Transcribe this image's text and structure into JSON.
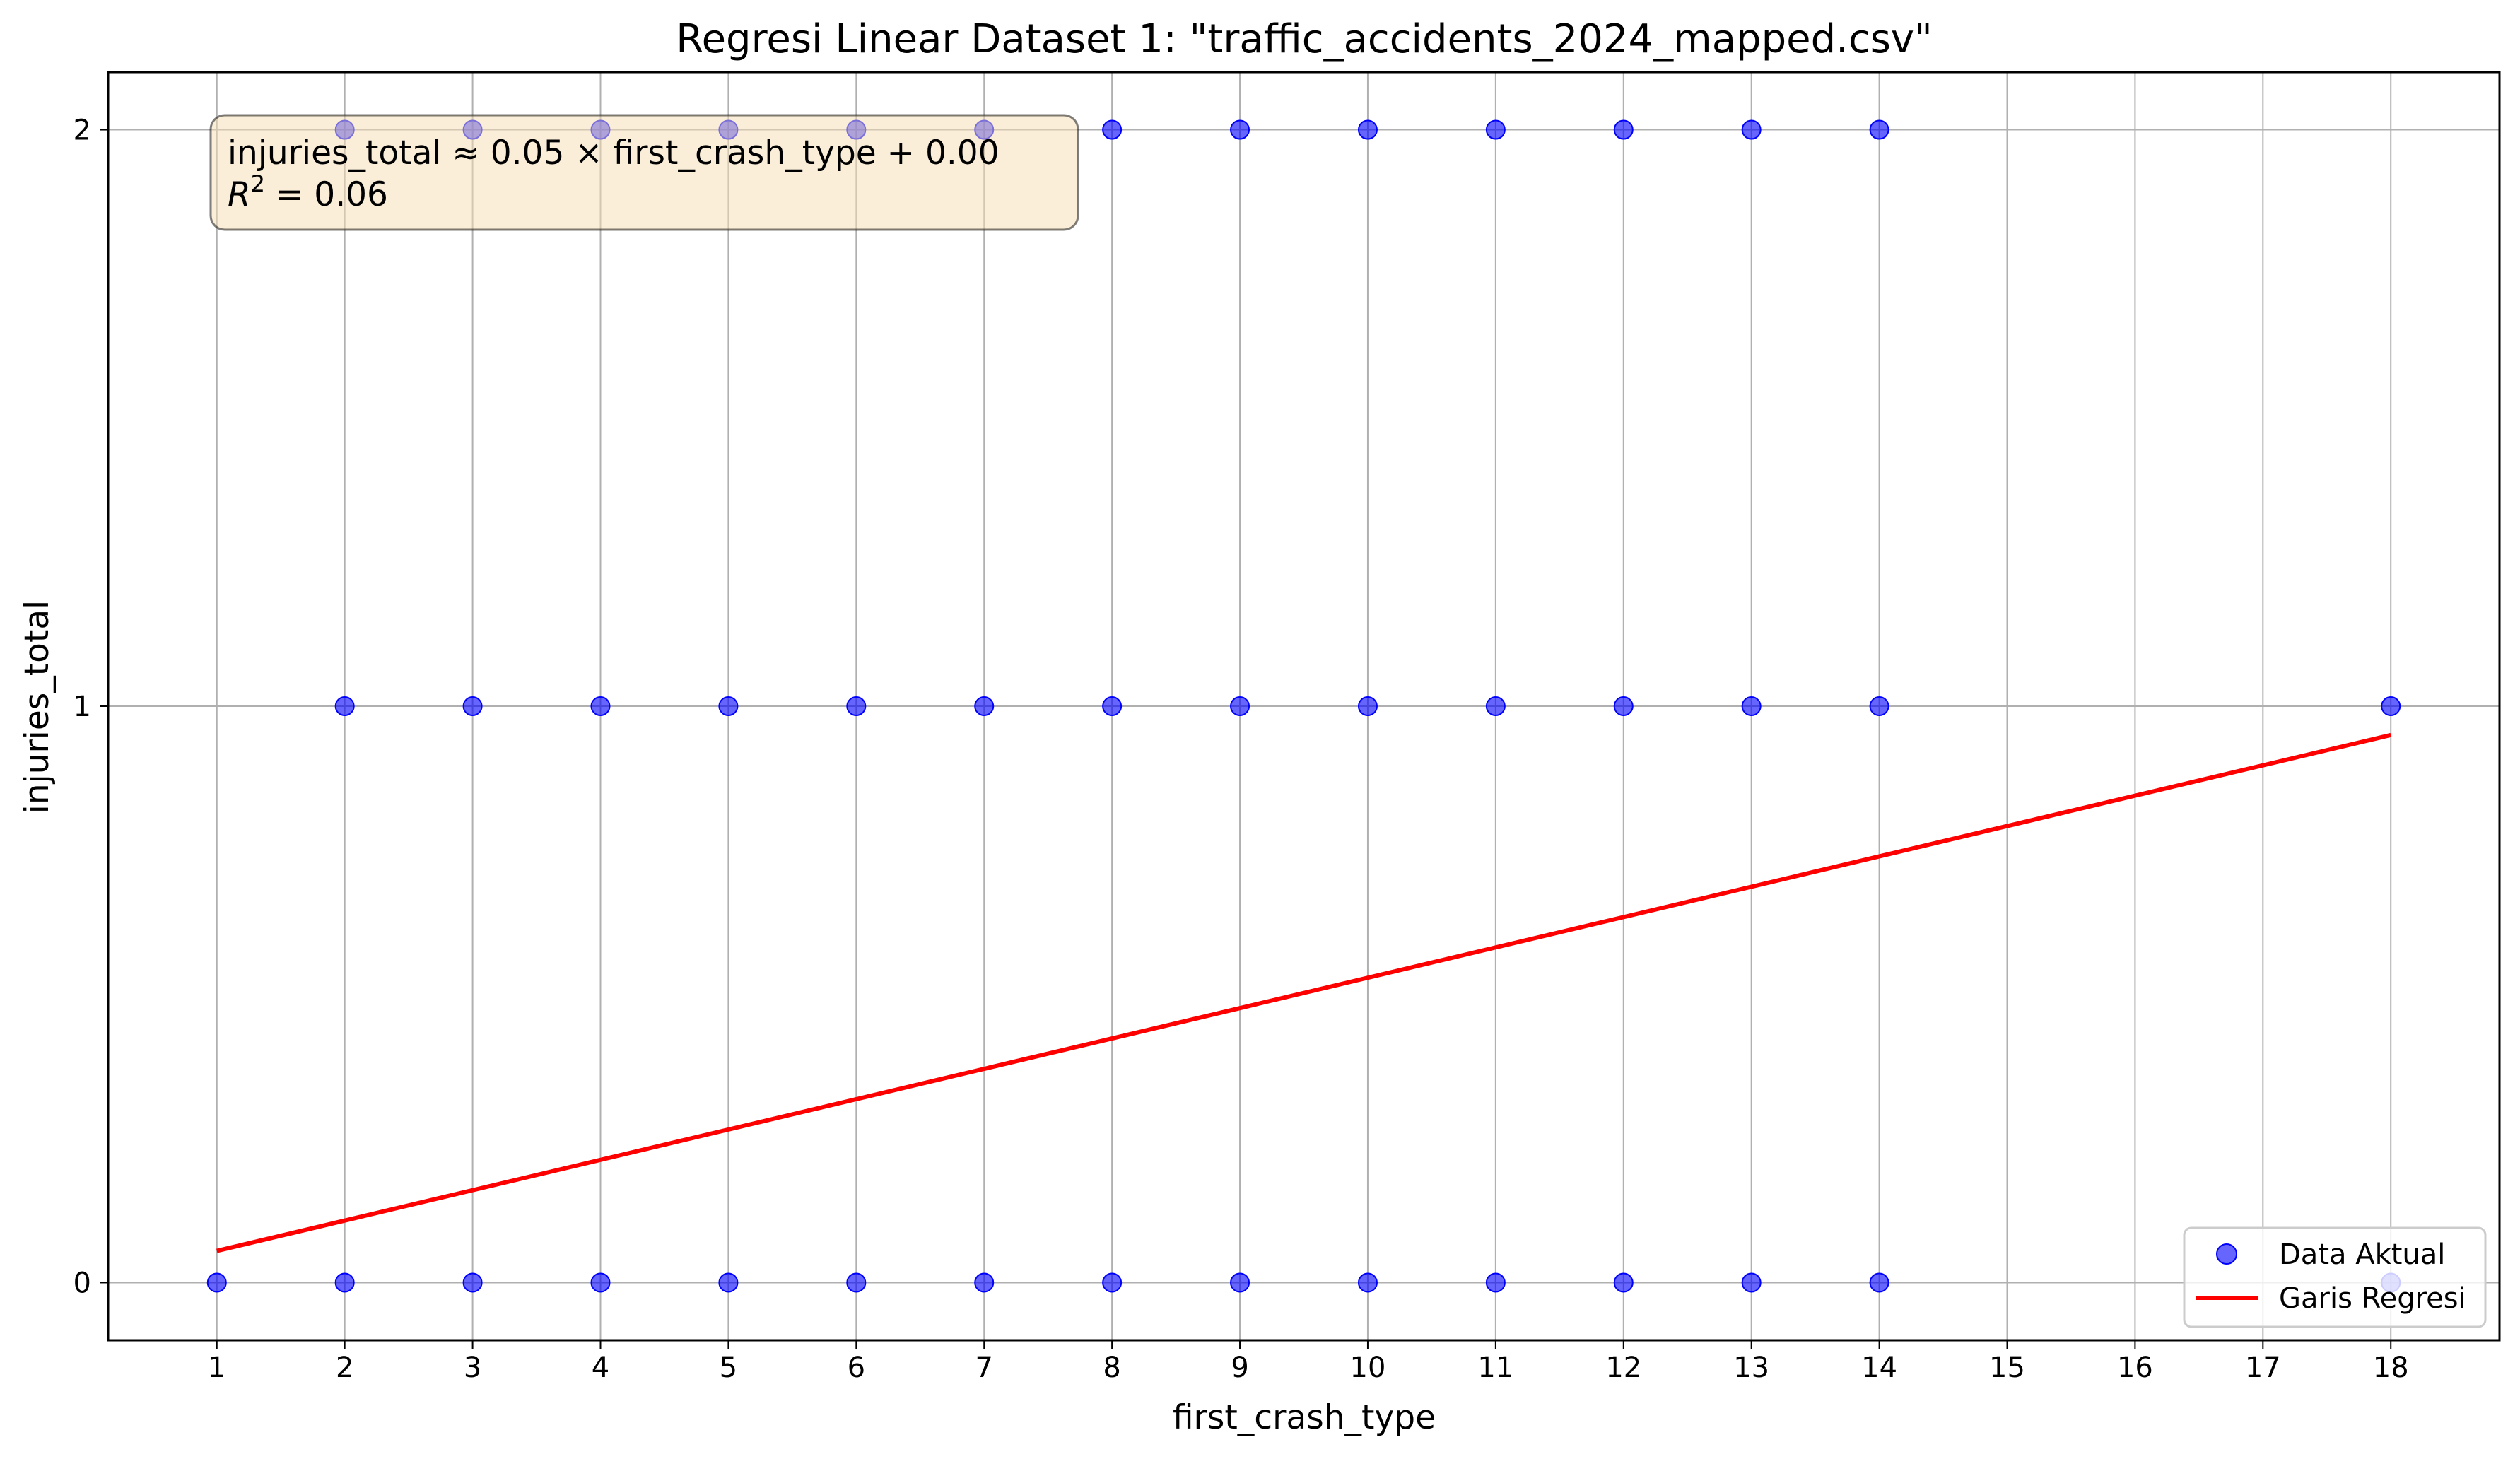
{
  "chart_data": {
    "type": "scatter",
    "title": "Regresi Linear Dataset 1: \"traffic_accidents_2024_mapped.csv\"",
    "xlabel": "first_crash_type",
    "ylabel": "injuries_total",
    "xlim": [
      0.15,
      18.85
    ],
    "ylim": [
      -0.1,
      2.1
    ],
    "xticks": [
      "1",
      "2",
      "3",
      "4",
      "5",
      "6",
      "7",
      "8",
      "9",
      "10",
      "11",
      "12",
      "13",
      "14",
      "15",
      "16",
      "17",
      "18"
    ],
    "yticks": [
      "0",
      "1",
      "2"
    ],
    "grid": true,
    "legend_position": "bottom-right",
    "annotation": {
      "line1": "injuries_total ≈ 0.05 × first_crash_type + 0.00",
      "r2_prefix": "R",
      "r2_suffix": " = 0.06"
    },
    "colors": {
      "points": "#0000ff",
      "line": "#ff0000",
      "annotation_fill": "#f5deb3",
      "grid": "#b0b0b0"
    },
    "series": [
      {
        "name": "Data Aktual",
        "type": "scatter",
        "x": [
          1,
          2,
          3,
          4,
          5,
          6,
          7,
          8,
          9,
          10,
          11,
          12,
          13,
          14,
          18,
          2,
          3,
          4,
          5,
          6,
          7,
          8,
          9,
          10,
          11,
          12,
          13,
          14,
          18,
          2,
          3,
          4,
          5,
          6,
          7,
          8,
          9,
          10,
          11,
          12,
          13,
          14
        ],
        "y": [
          0,
          0,
          0,
          0,
          0,
          0,
          0,
          0,
          0,
          0,
          0,
          0,
          0,
          0,
          0,
          1,
          1,
          1,
          1,
          1,
          1,
          1,
          1,
          1,
          1,
          1,
          1,
          1,
          1,
          2,
          2,
          2,
          2,
          2,
          2,
          2,
          2,
          2,
          2,
          2,
          2,
          2
        ]
      },
      {
        "name": "Garis Regresi",
        "type": "line",
        "x": [
          1,
          18
        ],
        "y": [
          0.055,
          0.95
        ]
      }
    ]
  }
}
